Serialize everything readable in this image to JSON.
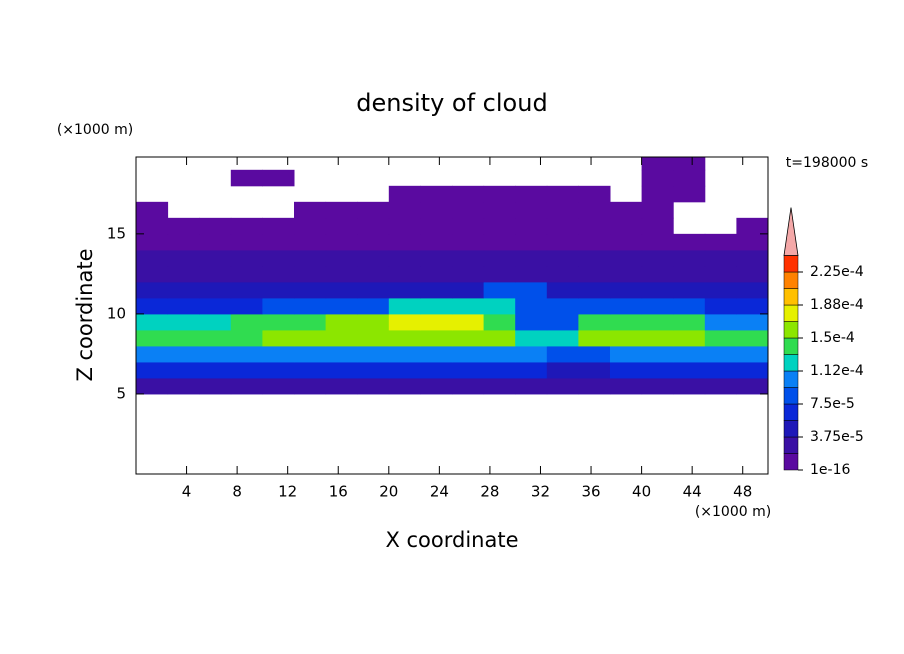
{
  "chart_data": {
    "type": "contour",
    "title": "density of cloud",
    "x_label": "X coordinate",
    "y_label": "Z coordinate",
    "x_unit": "(×1000 m)",
    "y_unit": "(×1000 m)",
    "annotation": "t=198000 s",
    "xlim": [
      0,
      50
    ],
    "xticks": [
      4,
      8,
      12,
      16,
      20,
      24,
      28,
      32,
      36,
      40,
      44,
      48
    ],
    "ylim": [
      0,
      19.8
    ],
    "yticks": [
      5,
      10,
      15
    ],
    "xbins": [
      0,
      2.5,
      5,
      7.5,
      10,
      12.5,
      15,
      17.5,
      20,
      22.5,
      25,
      27.5,
      30,
      32.5,
      35,
      37.5,
      40,
      42.5,
      45,
      47.5,
      50
    ],
    "ybins": [
      5,
      6,
      7,
      8,
      9,
      10,
      11,
      12,
      13,
      14,
      15,
      16,
      17,
      18,
      19,
      20
    ],
    "z": [
      [
        3e-05,
        3e-05,
        3e-05,
        3e-05,
        3e-05,
        3e-05,
        3e-05,
        3e-05,
        3e-05,
        3e-05,
        3e-05,
        3e-05,
        3e-05,
        3e-05,
        3e-05,
        3e-05,
        3e-05,
        3e-05,
        3e-05,
        3e-05
      ],
      [
        6e-05,
        6e-05,
        6e-05,
        6e-05,
        6e-05,
        6e-05,
        6e-05,
        6e-05,
        6e-05,
        6e-05,
        6e-05,
        6e-05,
        6e-05,
        4e-05,
        4e-05,
        6e-05,
        6e-05,
        6e-05,
        6e-05,
        6e-05
      ],
      [
        0.0001,
        0.0001,
        0.0001,
        0.0001,
        0.0001,
        0.0001,
        0.0001,
        0.0001,
        0.0001,
        0.0001,
        0.0001,
        0.0001,
        0.0001,
        8e-05,
        8e-05,
        0.0001,
        0.0001,
        0.0001,
        0.0001,
        0.0001
      ],
      [
        0.00014,
        0.00014,
        0.00014,
        0.00014,
        0.00015,
        0.00015,
        0.000165,
        0.000165,
        0.000165,
        0.000165,
        0.000165,
        0.00015,
        0.00012,
        0.00012,
        0.00015,
        0.00015,
        0.00015,
        0.00015,
        0.00014,
        0.00014
      ],
      [
        0.00012,
        0.00012,
        0.00012,
        0.00014,
        0.00014,
        0.00014,
        0.00015,
        0.00015,
        0.00017,
        0.00017,
        0.00017,
        0.00014,
        9e-05,
        9e-05,
        0.000135,
        0.000135,
        0.000135,
        0.000135,
        0.00011,
        0.00011
      ],
      [
        7e-05,
        7e-05,
        7e-05,
        7e-05,
        9e-05,
        9e-05,
        9e-05,
        9e-05,
        0.000115,
        0.000115,
        0.000115,
        0.000115,
        8e-05,
        8e-05,
        9e-05,
        9e-05,
        9e-05,
        9e-05,
        7e-05,
        7e-05
      ],
      [
        4.5e-05,
        4.5e-05,
        4.5e-05,
        4.5e-05,
        4.5e-05,
        4.5e-05,
        4.5e-05,
        4.5e-05,
        4.5e-05,
        4.5e-05,
        4.5e-05,
        8e-05,
        8e-05,
        4.5e-05,
        4.5e-05,
        4.5e-05,
        4.5e-05,
        4.5e-05,
        4.5e-05,
        4.5e-05
      ],
      [
        2.8e-05,
        2.8e-05,
        2.8e-05,
        2.8e-05,
        2.8e-05,
        2.8e-05,
        2.8e-05,
        2.8e-05,
        2.8e-05,
        2.8e-05,
        2.8e-05,
        2.8e-05,
        2.8e-05,
        2.8e-05,
        2.8e-05,
        2.8e-05,
        2.8e-05,
        2.8e-05,
        2.8e-05,
        2.8e-05
      ],
      [
        2e-05,
        2e-05,
        2e-05,
        2e-05,
        2e-05,
        2e-05,
        2e-05,
        2e-05,
        2e-05,
        2e-05,
        2e-05,
        2e-05,
        2e-05,
        2e-05,
        2e-05,
        2e-05,
        2e-05,
        2e-05,
        2e-05,
        2e-05
      ],
      [
        1.2e-05,
        1.2e-05,
        1.2e-05,
        1.2e-05,
        1.2e-05,
        1.2e-05,
        1.2e-05,
        1.2e-05,
        1.2e-05,
        1.2e-05,
        1.2e-05,
        1.2e-05,
        1.2e-05,
        1.2e-05,
        1.2e-05,
        1.2e-05,
        1.2e-05,
        1.2e-05,
        1.2e-05,
        1.2e-05
      ],
      [
        6e-06,
        6e-06,
        6e-06,
        6e-06,
        6e-06,
        6e-06,
        6e-06,
        6e-06,
        6e-06,
        6e-06,
        6e-06,
        6e-06,
        6e-06,
        6e-06,
        6e-06,
        6e-06,
        6e-06,
        null,
        null,
        6e-06
      ],
      [
        4e-06,
        null,
        null,
        null,
        null,
        5e-06,
        5e-06,
        5e-06,
        5e-06,
        5e-06,
        5e-06,
        5e-06,
        5e-06,
        5e-06,
        5e-06,
        5e-06,
        5e-06,
        null,
        null,
        null
      ],
      [
        null,
        null,
        null,
        null,
        null,
        null,
        null,
        null,
        3e-06,
        4e-06,
        4e-06,
        4e-06,
        4e-06,
        3e-06,
        3e-06,
        null,
        3e-06,
        3e-06,
        null,
        null
      ],
      [
        null,
        null,
        null,
        2e-06,
        2e-06,
        null,
        null,
        null,
        null,
        null,
        null,
        null,
        null,
        null,
        null,
        null,
        3e-06,
        3e-06,
        null,
        null
      ],
      [
        null,
        null,
        null,
        null,
        null,
        null,
        null,
        null,
        null,
        null,
        null,
        null,
        null,
        null,
        null,
        null,
        2e-06,
        2e-06,
        null,
        null
      ]
    ],
    "levels": [
      1e-16,
      1.875e-05,
      3.75e-05,
      5.625e-05,
      7.5e-05,
      9.375e-05,
      0.0001125,
      0.00013125,
      0.00015,
      0.00016875,
      0.0001875,
      0.00020625,
      0.000225,
      0.00024375
    ],
    "colors": [
      "#5a0aa0",
      "#3a10a4",
      "#1e18b8",
      "#0a28d8",
      "#0050ea",
      "#0a80f5",
      "#00d2c0",
      "#30dc50",
      "#8ce600",
      "#e6f000",
      "#ffc000",
      "#ff8200",
      "#ff3200"
    ],
    "overflow_color": "#f4a8a8",
    "colorbar_ticks": [
      {
        "value": 1e-16,
        "label": "1e-16"
      },
      {
        "value": 3.75e-05,
        "label": "3.75e-5"
      },
      {
        "value": 7.5e-05,
        "label": "7.5e-5"
      },
      {
        "value": 0.0001125,
        "label": "1.12e-4"
      },
      {
        "value": 0.00015,
        "label": "1.5e-4"
      },
      {
        "value": 0.0001875,
        "label": "1.88e-4"
      },
      {
        "value": 0.000225,
        "label": "2.25e-4"
      }
    ]
  }
}
